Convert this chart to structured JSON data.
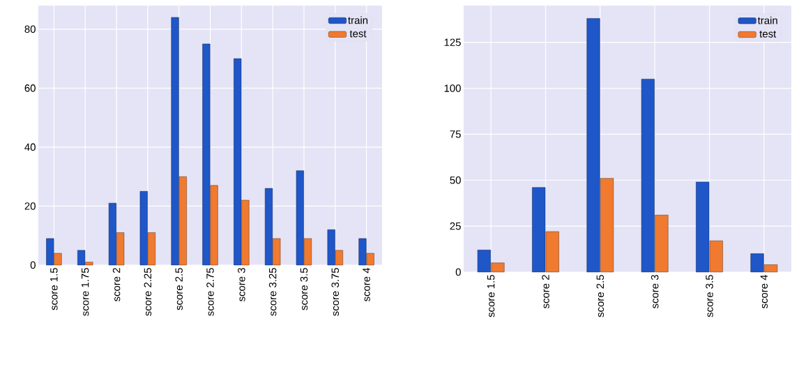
{
  "chart_data": [
    {
      "type": "bar",
      "categories": [
        "score 1.5",
        "score 1.75",
        "score 2",
        "score 2.25",
        "score 2.5",
        "score 2.75",
        "score 3",
        "score 3.25",
        "score 3.5",
        "score 3.75",
        "score 4"
      ],
      "series": [
        {
          "name": "train",
          "color": "#1f56c8",
          "values": [
            9,
            5,
            21,
            25,
            84,
            75,
            70,
            26,
            32,
            12,
            9
          ]
        },
        {
          "name": "test",
          "color": "#f07a30",
          "values": [
            4,
            1,
            11,
            11,
            30,
            27,
            22,
            9,
            9,
            5,
            4
          ]
        }
      ],
      "ylim": [
        0,
        88
      ],
      "yticks": [
        0,
        20,
        40,
        60,
        80
      ],
      "grid": true,
      "legend": "top right"
    },
    {
      "type": "bar",
      "categories": [
        "score 1.5",
        "score 2",
        "score 2.5",
        "score 3",
        "score 3.5",
        "score 4"
      ],
      "series": [
        {
          "name": "train",
          "color": "#1f56c8",
          "values": [
            12,
            46,
            138,
            105,
            49,
            10
          ]
        },
        {
          "name": "test",
          "color": "#f07a30",
          "values": [
            5,
            22,
            51,
            31,
            17,
            4
          ]
        }
      ],
      "ylim": [
        0,
        145
      ],
      "yticks": [
        0,
        25,
        50,
        75,
        100,
        125
      ],
      "grid": true,
      "legend": "top right"
    }
  ]
}
